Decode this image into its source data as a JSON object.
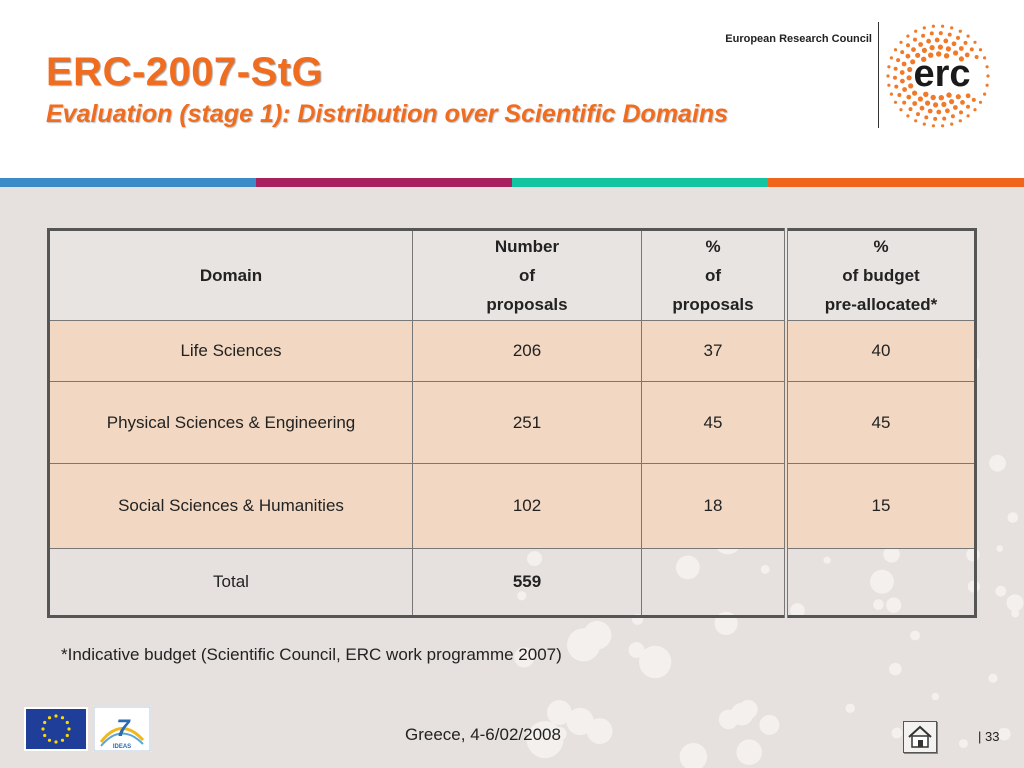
{
  "header": {
    "title": "ERC-2007-StG",
    "subtitle": "Evaluation (stage 1): Distribution over Scientific Domains",
    "org_name": "European Research Council",
    "logo_text": "erc"
  },
  "colors": {
    "accent_orange": "#f06c1f",
    "stripe": [
      "#3a8bc8",
      "#a8205e",
      "#12c4a0",
      "#f0651c"
    ],
    "row_fill": "#f2d8c2",
    "slide_background": "#e6e1de"
  },
  "table": {
    "headers": [
      [
        "Domain"
      ],
      [
        "Number",
        "of",
        "proposals"
      ],
      [
        "%",
        "of",
        "proposals"
      ],
      [
        "%",
        "of budget",
        "pre-allocated*"
      ]
    ],
    "rows": [
      [
        "Life Sciences",
        "206",
        "37",
        "40"
      ],
      [
        "Physical Sciences & Engineering",
        "251",
        "45",
        "45"
      ],
      [
        "Social Sciences & Humanities",
        "102",
        "18",
        "15"
      ]
    ],
    "total": [
      "Total",
      "559",
      "",
      ""
    ]
  },
  "footnote": "*Indicative budget (Scientific Council, ERC work programme 2007)",
  "footer": {
    "location_date": "Greece, 4-6/02/2008",
    "page_number": "33",
    "page_separator": "|",
    "fp7_logo_text": "IDEAS",
    "fp7_logo_number": "7",
    "home_icon": "home-icon"
  }
}
